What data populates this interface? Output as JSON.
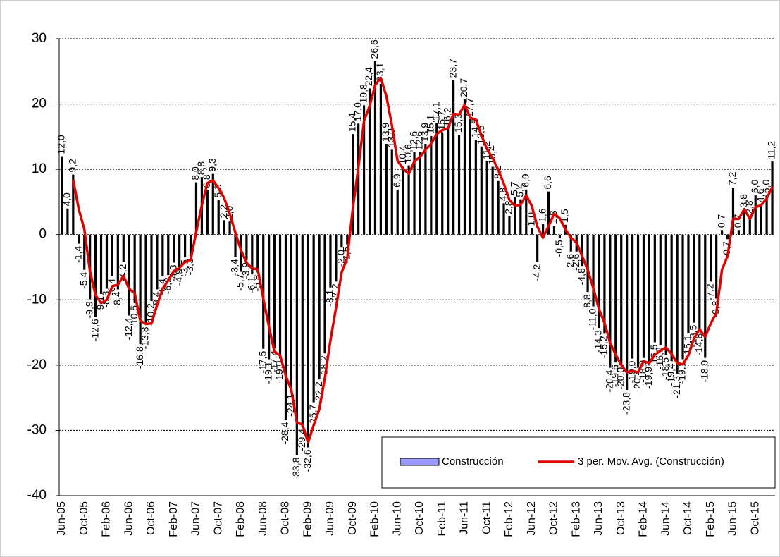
{
  "chart_data": {
    "type": "bar",
    "categories": [
      "Jun-05",
      null,
      null,
      null,
      "Oct-05",
      null,
      null,
      null,
      "Feb-06",
      null,
      null,
      null,
      "Jun-06",
      null,
      null,
      null,
      "Oct-06",
      null,
      null,
      null,
      "Feb-07",
      null,
      null,
      null,
      "Jun-07",
      null,
      null,
      null,
      "Oct-07",
      null,
      null,
      null,
      "Feb-08",
      null,
      null,
      null,
      "Jun-08",
      null,
      null,
      null,
      "Oct-08",
      null,
      null,
      null,
      "Feb-09",
      null,
      null,
      null,
      "Jun-09",
      null,
      null,
      null,
      "Oct-09",
      null,
      null,
      null,
      "Feb-10",
      null,
      null,
      null,
      "Jun-10",
      null,
      null,
      null,
      "Oct-10",
      null,
      null,
      null,
      "Feb-11",
      null,
      null,
      null,
      "Jun-11",
      null,
      null,
      null,
      "Oct-11",
      null,
      null,
      null,
      "Feb-12",
      null,
      null,
      null,
      "Jun-12",
      null,
      null,
      null,
      "Oct-12",
      null,
      null,
      null,
      "Feb-13",
      null,
      null,
      null,
      "Jun-13",
      null,
      null,
      null,
      "Oct-13",
      null,
      null,
      null,
      "Feb-14",
      null,
      null,
      null,
      "Jun-14",
      null,
      null,
      null,
      "Oct-14",
      null,
      null,
      null,
      "Feb-15",
      null,
      null,
      null,
      "Jun-15",
      null,
      null,
      null,
      "Oct-15",
      null,
      null,
      null
    ],
    "series": [
      {
        "name": "Construcción",
        "type": "bar",
        "color": "#000000",
        "legend_color": "#9999ff",
        "values": [
          12.0,
          4.0,
          9.2,
          -1.4,
          -5.4,
          -9.9,
          -12.6,
          -9.1,
          -8.3,
          -6.4,
          -8.4,
          -4.2,
          -12.4,
          -10.5,
          -16.8,
          -13.8,
          -10.2,
          -8.4,
          -6.4,
          -6.2,
          -4.3,
          -4.9,
          -3.5,
          -3.3,
          8.0,
          8.8,
          6.8,
          9.3,
          5.3,
          2.2,
          2.0,
          -3.4,
          -5.7,
          -3.9,
          -6.1,
          -5.8,
          -17.5,
          -19.1,
          -17.4,
          -19.0,
          -28.4,
          -24.1,
          -33.8,
          -29.4,
          -32.6,
          -25.7,
          -22.2,
          -18.2,
          -8.1,
          -7.2,
          -2.0,
          -1.5,
          15.4,
          17.0,
          19.8,
          22.4,
          26.6,
          23.1,
          13.9,
          13.0,
          6.9,
          10.4,
          10.6,
          12.6,
          12.6,
          13.9,
          15.1,
          17.1,
          15.7,
          16.2,
          23.7,
          15.3,
          20.7,
          17.7,
          14.5,
          13.5,
          11.2,
          10.4,
          8.2,
          4.8,
          2.8,
          5.7,
          5.4,
          6.9,
          1.0,
          -4.2,
          1.6,
          6.6,
          1.3,
          -0.5,
          1.5,
          -2.6,
          -2.6,
          -4.8,
          -8.8,
          -11.0,
          -14.3,
          -15.2,
          -20.4,
          -19.6,
          -20.0,
          -23.8,
          -19.0,
          -20.4,
          -18.9,
          -19.9,
          -16.5,
          -16.9,
          -18.5,
          -19.4,
          -21.3,
          -19.1,
          -15.1,
          -13.5,
          -14.8,
          -18.9,
          -7.2,
          -9.8,
          0.7,
          -0.7,
          7.2,
          0.7,
          3.8,
          2.8,
          6.0,
          4.6,
          6.0,
          11.2
        ],
        "value_labels": [
          "12,0",
          "4,0",
          "9,2",
          "-1,4",
          "-5,4",
          "-9,9",
          "-12,6",
          "-9,1",
          "-8,3",
          "-6,4",
          "-8,4",
          "-4,2",
          "-12,4",
          "-10,5",
          "-16,8",
          "-13,8",
          "-10,2",
          "-8,4",
          "-6,4",
          "-6,2",
          "-4,3",
          "-4,9",
          "-3,5",
          "-3,3",
          "8,0",
          "8,8",
          "6,8",
          "9,3",
          "5,3",
          "2,2",
          "2,0",
          "-3,4",
          "-5,7",
          "-3,9",
          "-6,1",
          "-5,8",
          "-17,5",
          "-19,1",
          "-17,4",
          "-19,0",
          "-28,4",
          "-24,1",
          "-33,8",
          "-29,4",
          "-32,6",
          "-25,7",
          "-22,2",
          "-18,2",
          "-8,1",
          "-7,2",
          "-2,0",
          "-1,5",
          "15,4",
          "17,0",
          "19,8",
          "22,4",
          "26,6",
          "23,1",
          "13,9",
          "13,0",
          "6,9",
          "10,4",
          "10,6",
          "12,6",
          "12,6",
          "13,9",
          "15,1",
          "17,1",
          "15,7",
          "16,2",
          "23,7",
          "15,3",
          "20,7",
          "17,7",
          "14,5",
          "13,5",
          "11,2",
          "10,4",
          "8,2",
          "4,8",
          "2,8",
          "5,7",
          "5,4",
          "6,9",
          "1,0",
          "-4,2",
          "1,6",
          "6,6",
          "1,3",
          "-0,5",
          "1,5",
          "-2,6",
          "-2,6",
          "-4,8",
          "-8,8",
          "-11,0",
          "-14,3",
          "-15,2",
          "-20,4",
          "-19,6",
          "-20,0",
          "-23,8",
          "-19,0",
          "-20,4",
          "-18,9",
          "-19,9",
          "-16,5",
          "-16,9",
          "-18,5",
          "-19,4",
          "-21,3",
          "-19,1",
          "-15,1",
          "-13,5",
          "-14,8",
          "-18,9",
          "-7,2",
          "-9,8",
          "0,7",
          "-0,7",
          "7,2",
          "0,7",
          "3,8",
          "2,8",
          "6,0",
          "4,6",
          "6,0",
          "11,2"
        ]
      },
      {
        "name": "3 per. Mov. Avg. (Construcción)",
        "type": "line",
        "color": "#e00000",
        "values": [
          null,
          null,
          8.4,
          3.9,
          0.8,
          -5.6,
          -9.3,
          -10.5,
          -10.0,
          -7.9,
          -7.7,
          -6.3,
          -8.3,
          -9.0,
          -13.2,
          -13.7,
          -13.6,
          -10.8,
          -8.3,
          -7.0,
          -5.6,
          -5.1,
          -4.2,
          -3.9,
          0.4,
          4.5,
          7.9,
          8.3,
          7.1,
          5.6,
          3.2,
          0.3,
          -2.4,
          -4.3,
          -5.2,
          -5.3,
          -9.8,
          -14.1,
          -18.0,
          -18.5,
          -21.6,
          -23.8,
          -28.8,
          -29.1,
          -31.9,
          -29.2,
          -26.8,
          -22.0,
          -16.2,
          -11.2,
          -5.8,
          -3.6,
          4.0,
          10.3,
          17.4,
          19.7,
          22.9,
          24.0,
          21.2,
          16.7,
          11.3,
          10.1,
          9.3,
          11.2,
          11.9,
          13.0,
          13.9,
          15.4,
          16.0,
          16.3,
          18.5,
          18.4,
          19.9,
          17.9,
          17.6,
          15.2,
          13.1,
          11.7,
          9.9,
          7.8,
          5.3,
          4.4,
          4.6,
          6.0,
          4.4,
          1.2,
          -0.5,
          1.3,
          3.2,
          2.5,
          0.8,
          -0.5,
          -1.2,
          -3.3,
          -5.4,
          -8.2,
          -11.4,
          -13.5,
          -16.6,
          -18.4,
          -20.0,
          -21.1,
          -20.9,
          -21.1,
          -19.4,
          -19.7,
          -18.4,
          -17.8,
          -17.3,
          -18.3,
          -19.7,
          -19.9,
          -18.5,
          -15.9,
          -14.5,
          -15.7,
          -13.6,
          -12.0,
          -5.4,
          -3.3,
          2.4,
          2.4,
          3.9,
          2.4,
          4.2,
          4.5,
          5.5,
          7.3
        ]
      }
    ],
    "ylim": [
      -40,
      30
    ],
    "yticks": [
      -40,
      -30,
      -20,
      -10,
      0,
      10,
      20,
      30
    ],
    "grid": true,
    "legend": "lower right"
  }
}
